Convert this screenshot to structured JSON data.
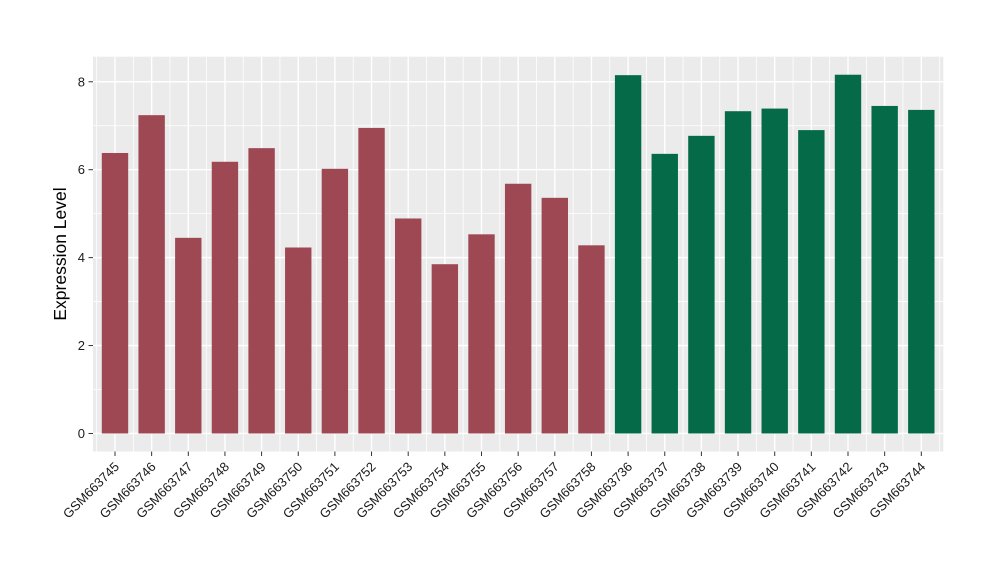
{
  "chart_data": {
    "type": "bar",
    "title": "",
    "xlabel": "",
    "ylabel": "Expression Level",
    "categories": [
      "GSM663745",
      "GSM663746",
      "GSM663747",
      "GSM663748",
      "GSM663749",
      "GSM663750",
      "GSM663751",
      "GSM663752",
      "GSM663753",
      "GSM663754",
      "GSM663755",
      "GSM663756",
      "GSM663757",
      "GSM663758",
      "GSM663736",
      "GSM663737",
      "GSM663738",
      "GSM663739",
      "GSM663740",
      "GSM663741",
      "GSM663742",
      "GSM663743",
      "GSM663744"
    ],
    "values": [
      6.38,
      7.24,
      4.45,
      6.18,
      6.49,
      4.23,
      6.02,
      6.95,
      4.89,
      3.85,
      4.53,
      5.68,
      5.36,
      4.28,
      8.15,
      6.36,
      6.77,
      7.33,
      7.39,
      6.9,
      8.16,
      7.45,
      7.36
    ],
    "bar_colors": [
      "#9E4854",
      "#9E4854",
      "#9E4854",
      "#9E4854",
      "#9E4854",
      "#9E4854",
      "#9E4854",
      "#9E4854",
      "#9E4854",
      "#9E4854",
      "#9E4854",
      "#9E4854",
      "#9E4854",
      "#9E4854",
      "#046A48",
      "#046A48",
      "#046A48",
      "#046A48",
      "#046A48",
      "#046A48",
      "#046A48",
      "#046A48",
      "#046A48"
    ],
    "palette": {
      "maroon": "#9E4854",
      "green": "#046A48"
    },
    "yticks": [
      0,
      2,
      4,
      6,
      8
    ],
    "yticks_minor": [
      1,
      3,
      5,
      7
    ],
    "ylim": [
      0,
      8.16
    ],
    "grid": true,
    "legend": false,
    "panel_background": "#EBEBEB",
    "gridline_color": "#FFFFFF",
    "axis_text_color": "#1A1A1A",
    "tick_mark_color": "#333333",
    "x_tick_rotation_deg": 45
  }
}
